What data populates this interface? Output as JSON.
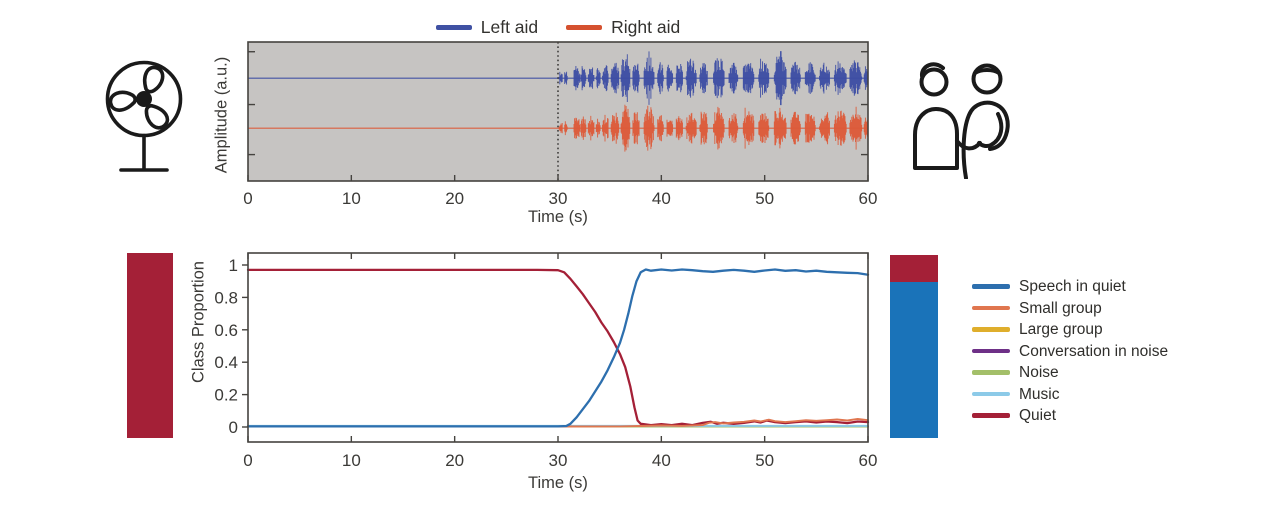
{
  "canvas": {
    "background": "#ffffff"
  },
  "icons": {
    "left": "fan-icon",
    "right": "two-people-talking-icon",
    "stroke_color": "#1a1a1a"
  },
  "side_bars": {
    "left": {
      "segments": [
        {
          "color": "#a42037",
          "fraction": 1.0
        }
      ]
    },
    "right": {
      "segments": [
        {
          "color": "#a42037",
          "fraction": 0.15
        },
        {
          "color": "#1a73b9",
          "fraction": 0.85
        }
      ]
    }
  },
  "chart_data": [
    {
      "type": "line",
      "name": "hearing-aid-waveforms",
      "xlabel": "Time (s)",
      "ylabel": "Amplitude (a.u.)",
      "xlim": [
        0,
        60
      ],
      "xticks": [
        0,
        10,
        20,
        30,
        40,
        50,
        60
      ],
      "grid": false,
      "plot_background": "#c6c4c2",
      "axis_color": "#45433f",
      "onset_line_s": 30,
      "legend": {
        "position": "top-center",
        "entries": [
          {
            "label": "Left aid",
            "color": "#3f51a3"
          },
          {
            "label": "Right aid",
            "color": "#d5512f"
          }
        ]
      },
      "series": [
        {
          "name": "Left aid",
          "color": "#3c4da3",
          "center_frac": 0.26,
          "quiet_until_s": 30
        },
        {
          "name": "Right aid",
          "color": "#dd5a38",
          "center_frac": 0.62,
          "quiet_until_s": 30
        }
      ],
      "speech_bursts": [
        [
          30.1,
          30.45,
          0.3
        ],
        [
          30.6,
          30.9,
          0.28
        ],
        [
          31.5,
          32.1,
          0.5
        ],
        [
          32.2,
          32.7,
          0.45
        ],
        [
          32.9,
          33.5,
          0.48
        ],
        [
          33.7,
          34.1,
          0.4
        ],
        [
          34.3,
          34.9,
          0.52
        ],
        [
          35.1,
          35.9,
          0.6
        ],
        [
          36.1,
          37.0,
          0.95
        ],
        [
          37.2,
          37.9,
          0.65
        ],
        [
          38.3,
          39.3,
          0.85
        ],
        [
          39.6,
          40.2,
          0.6
        ],
        [
          40.5,
          41.1,
          0.55
        ],
        [
          41.4,
          42.1,
          0.62
        ],
        [
          42.4,
          43.4,
          0.7
        ],
        [
          43.7,
          44.5,
          0.62
        ],
        [
          45.0,
          46.1,
          0.8
        ],
        [
          46.5,
          47.4,
          0.62
        ],
        [
          47.9,
          49.0,
          0.72
        ],
        [
          49.4,
          50.4,
          0.68
        ],
        [
          50.9,
          52.1,
          0.9
        ],
        [
          52.5,
          53.5,
          0.62
        ],
        [
          53.9,
          54.9,
          0.66
        ],
        [
          55.3,
          56.3,
          0.6
        ],
        [
          56.7,
          57.9,
          0.68
        ],
        [
          58.2,
          59.4,
          0.72
        ],
        [
          59.6,
          60.0,
          0.5
        ]
      ]
    },
    {
      "type": "line",
      "name": "class-proportion-over-time",
      "xlabel": "Time (s)",
      "ylabel": "Class Proportion",
      "xlim": [
        0,
        60
      ],
      "ylim": [
        0,
        1
      ],
      "xticks": [
        0,
        10,
        20,
        30,
        40,
        50,
        60
      ],
      "yticks": [
        0,
        0.2,
        0.4,
        0.6,
        0.8,
        1
      ],
      "ytick_labels": [
        "0",
        "0.2",
        "0.4",
        "0.6",
        "0.8",
        "1"
      ],
      "grid": false,
      "plot_background": "#ffffff",
      "axis_color": "#45433f",
      "legend_position": "right",
      "series": [
        {
          "name": "Speech in quiet",
          "color": "#2d6fae",
          "width": 2.3,
          "points": [
            [
              0,
              0.004
            ],
            [
              5,
              0.004
            ],
            [
              10,
              0.004
            ],
            [
              15,
              0.004
            ],
            [
              20,
              0.004
            ],
            [
              25,
              0.004
            ],
            [
              30,
              0.004
            ],
            [
              30.8,
              0.006
            ],
            [
              31.2,
              0.02
            ],
            [
              31.8,
              0.06
            ],
            [
              32.4,
              0.11
            ],
            [
              33,
              0.16
            ],
            [
              33.6,
              0.22
            ],
            [
              34.2,
              0.28
            ],
            [
              34.8,
              0.35
            ],
            [
              35.4,
              0.43
            ],
            [
              36,
              0.52
            ],
            [
              36.4,
              0.6
            ],
            [
              36.8,
              0.7
            ],
            [
              37.2,
              0.81
            ],
            [
              37.6,
              0.9
            ],
            [
              38,
              0.955
            ],
            [
              38.5,
              0.972
            ],
            [
              39,
              0.965
            ],
            [
              40,
              0.972
            ],
            [
              41,
              0.966
            ],
            [
              42,
              0.972
            ],
            [
              43,
              0.968
            ],
            [
              44,
              0.962
            ],
            [
              45,
              0.958
            ],
            [
              46,
              0.965
            ],
            [
              47,
              0.97
            ],
            [
              48,
              0.965
            ],
            [
              49,
              0.958
            ],
            [
              50,
              0.966
            ],
            [
              51,
              0.972
            ],
            [
              52,
              0.964
            ],
            [
              53,
              0.968
            ],
            [
              54,
              0.96
            ],
            [
              55,
              0.965
            ],
            [
              56,
              0.958
            ],
            [
              57,
              0.955
            ],
            [
              58,
              0.952
            ],
            [
              59,
              0.95
            ],
            [
              60,
              0.94
            ]
          ]
        },
        {
          "name": "Small group",
          "color": "#e0764f",
          "width": 1.9,
          "points": [
            [
              0,
              0.003
            ],
            [
              10,
              0.003
            ],
            [
              20,
              0.003
            ],
            [
              30,
              0.003
            ],
            [
              36,
              0.004
            ],
            [
              38,
              0.006
            ],
            [
              40,
              0.009
            ],
            [
              42,
              0.007
            ],
            [
              44,
              0.012
            ],
            [
              44.6,
              0.026
            ],
            [
              45.2,
              0.03
            ],
            [
              46,
              0.022
            ],
            [
              47,
              0.028
            ],
            [
              48,
              0.032
            ],
            [
              49,
              0.04
            ],
            [
              49.6,
              0.034
            ],
            [
              50.4,
              0.045
            ],
            [
              51,
              0.036
            ],
            [
              52,
              0.03
            ],
            [
              53,
              0.036
            ],
            [
              54,
              0.042
            ],
            [
              55,
              0.038
            ],
            [
              56,
              0.042
            ],
            [
              57,
              0.046
            ],
            [
              58,
              0.04
            ],
            [
              59,
              0.05
            ],
            [
              60,
              0.042
            ]
          ]
        },
        {
          "name": "Large group",
          "color": "#dfae2c",
          "width": 1.6,
          "points": [
            [
              0,
              0.002
            ],
            [
              60,
              0.002
            ]
          ]
        },
        {
          "name": "Conversation in noise",
          "color": "#6e3087",
          "width": 1.6,
          "points": [
            [
              0,
              0.002
            ],
            [
              60,
              0.002
            ]
          ]
        },
        {
          "name": "Noise",
          "color": "#a3bf69",
          "width": 1.6,
          "points": [
            [
              0,
              0.002
            ],
            [
              60,
              0.002
            ]
          ]
        },
        {
          "name": "Music",
          "color": "#8ccae8",
          "width": 2.0,
          "points": [
            [
              0,
              0.007
            ],
            [
              60,
              0.007
            ]
          ]
        },
        {
          "name": "Quiet",
          "color": "#a42037",
          "width": 2.3,
          "points": [
            [
              0,
              0.97
            ],
            [
              4,
              0.97
            ],
            [
              8,
              0.97
            ],
            [
              12,
              0.97
            ],
            [
              16,
              0.97
            ],
            [
              20,
              0.97
            ],
            [
              24,
              0.97
            ],
            [
              28,
              0.97
            ],
            [
              30,
              0.968
            ],
            [
              30.6,
              0.955
            ],
            [
              31.2,
              0.915
            ],
            [
              31.8,
              0.868
            ],
            [
              32.4,
              0.82
            ],
            [
              33,
              0.765
            ],
            [
              33.6,
              0.71
            ],
            [
              34.2,
              0.645
            ],
            [
              34.8,
              0.59
            ],
            [
              35.4,
              0.525
            ],
            [
              36,
              0.45
            ],
            [
              36.5,
              0.37
            ],
            [
              37,
              0.25
            ],
            [
              37.4,
              0.12
            ],
            [
              37.7,
              0.04
            ],
            [
              38,
              0.02
            ],
            [
              39,
              0.012
            ],
            [
              40,
              0.018
            ],
            [
              41,
              0.012
            ],
            [
              42,
              0.02
            ],
            [
              43,
              0.012
            ],
            [
              44,
              0.025
            ],
            [
              44.8,
              0.032
            ],
            [
              45.4,
              0.02
            ],
            [
              46,
              0.026
            ],
            [
              47,
              0.02
            ],
            [
              48,
              0.026
            ],
            [
              49,
              0.035
            ],
            [
              49.6,
              0.028
            ],
            [
              50.2,
              0.04
            ],
            [
              51,
              0.03
            ],
            [
              52,
              0.024
            ],
            [
              53,
              0.03
            ],
            [
              54,
              0.035
            ],
            [
              55,
              0.028
            ],
            [
              56,
              0.034
            ],
            [
              57,
              0.03
            ],
            [
              58,
              0.024
            ],
            [
              59,
              0.034
            ],
            [
              60,
              0.03
            ]
          ]
        }
      ]
    }
  ]
}
